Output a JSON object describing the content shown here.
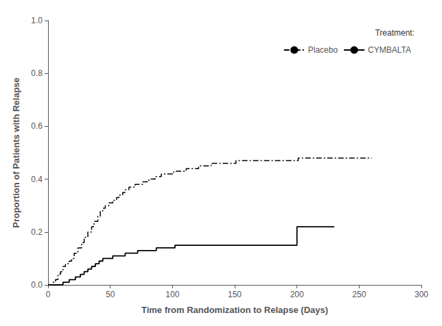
{
  "chart_data": {
    "type": "step",
    "xlabel": "Time from Randomization to Relapse (Days)",
    "ylabel": "Proportion of Patients with Relapse",
    "xlim": [
      0,
      300
    ],
    "ylim": [
      0.0,
      1.0
    ],
    "xticks": [
      0,
      50,
      100,
      150,
      200,
      250,
      300
    ],
    "yticks": [
      {
        "value": 0.0,
        "label": "0.0"
      },
      {
        "value": 0.2,
        "label": "0.2"
      },
      {
        "value": 0.4,
        "label": "0.4"
      },
      {
        "value": 0.6,
        "label": "0.6"
      },
      {
        "value": 0.8,
        "label": "0.8"
      },
      {
        "value": 1.0,
        "label": "1.0"
      }
    ],
    "grid": false,
    "legend": "upper right",
    "legend_title": "Treatment:",
    "series": [
      {
        "name": "Placebo",
        "color": "#000000",
        "line_style": "dashdot",
        "x": [
          0,
          4,
          6,
          8,
          10,
          12,
          14,
          17,
          19,
          21,
          24,
          27,
          29,
          32,
          35,
          37,
          40,
          42,
          44,
          46,
          49,
          52,
          55,
          57,
          60,
          62,
          65,
          68,
          70,
          73,
          76,
          81,
          86,
          91,
          96,
          101,
          106,
          111,
          116,
          121,
          126,
          131,
          136,
          141,
          146,
          151,
          156,
          161,
          166,
          171,
          176,
          181,
          186,
          191,
          196,
          201,
          260
        ],
        "values": [
          0.0,
          0.01,
          0.02,
          0.04,
          0.05,
          0.07,
          0.08,
          0.09,
          0.1,
          0.12,
          0.14,
          0.16,
          0.18,
          0.2,
          0.22,
          0.24,
          0.26,
          0.28,
          0.29,
          0.3,
          0.31,
          0.32,
          0.33,
          0.34,
          0.35,
          0.36,
          0.37,
          0.37,
          0.38,
          0.38,
          0.39,
          0.4,
          0.41,
          0.42,
          0.42,
          0.43,
          0.43,
          0.44,
          0.44,
          0.45,
          0.45,
          0.46,
          0.46,
          0.46,
          0.46,
          0.47,
          0.47,
          0.47,
          0.47,
          0.47,
          0.47,
          0.47,
          0.47,
          0.47,
          0.47,
          0.48,
          0.48
        ]
      },
      {
        "name": "CYMBALTA",
        "color": "#000000",
        "line_style": "solid",
        "x": [
          0,
          12,
          17,
          22,
          26,
          29,
          32,
          35,
          38,
          41,
          44,
          48,
          52,
          57,
          62,
          67,
          72,
          77,
          82,
          87,
          92,
          97,
          102,
          107,
          112,
          117,
          122,
          127,
          132,
          137,
          142,
          147,
          152,
          195,
          200,
          230
        ],
        "values": [
          0.0,
          0.01,
          0.02,
          0.03,
          0.04,
          0.05,
          0.06,
          0.07,
          0.08,
          0.09,
          0.1,
          0.1,
          0.11,
          0.11,
          0.12,
          0.12,
          0.13,
          0.13,
          0.13,
          0.14,
          0.14,
          0.14,
          0.15,
          0.15,
          0.15,
          0.15,
          0.15,
          0.15,
          0.15,
          0.15,
          0.15,
          0.15,
          0.15,
          0.15,
          0.22,
          0.22
        ]
      }
    ]
  }
}
